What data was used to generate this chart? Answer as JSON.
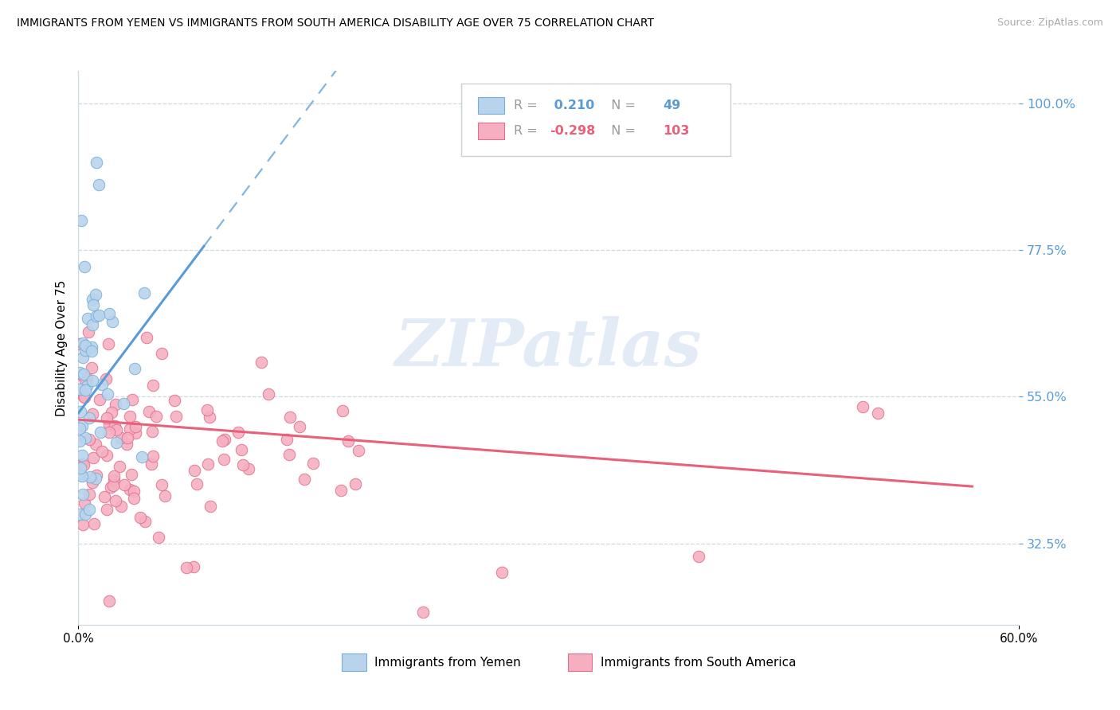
{
  "title": "IMMIGRANTS FROM YEMEN VS IMMIGRANTS FROM SOUTH AMERICA DISABILITY AGE OVER 75 CORRELATION CHART",
  "source": "Source: ZipAtlas.com",
  "ylabel": "Disability Age Over 75",
  "ytick_labels": [
    "100.0%",
    "77.5%",
    "55.0%",
    "32.5%"
  ],
  "ytick_values": [
    1.0,
    0.775,
    0.55,
    0.325
  ],
  "xlim": [
    0.0,
    0.6
  ],
  "ylim": [
    0.2,
    1.05
  ],
  "yemen_R": 0.21,
  "yemen_N": 49,
  "sa_R": -0.298,
  "sa_N": 103,
  "yemen_color": "#b8d4ed",
  "yemen_edge": "#7aaed6",
  "sa_color": "#f5afc0",
  "sa_edge": "#e07090",
  "yemen_line_color": "#5b9bd5",
  "sa_line_color": "#e8607a",
  "yemen_line_solid_end": 0.08,
  "yemen_line_start_y": 0.525,
  "yemen_line_slope": 3.2,
  "sa_line_start_y": 0.515,
  "sa_line_slope": -0.18,
  "watermark_text": "ZIPatlas",
  "watermark_color": "#d0dff0",
  "legend_label_yemen": "Immigrants from Yemen",
  "legend_label_sa": "Immigrants from South America",
  "yemen_color_r": "#5b9bd5",
  "sa_color_r": "#e8607a"
}
